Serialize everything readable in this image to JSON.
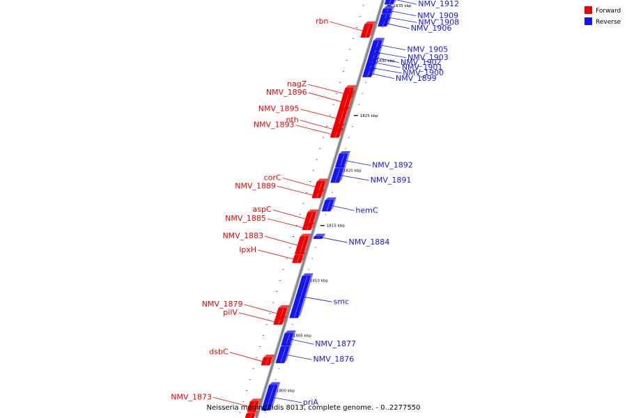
{
  "caption": "Neisseria meningitidis 8013, complete genome. - 0..2277550",
  "legend": [
    {
      "label": "Forward",
      "color": "#ee0000"
    },
    {
      "label": "Reverse",
      "color": "#1515ee"
    }
  ],
  "colors": {
    "forward": "#ee0000",
    "reverse": "#1515ee",
    "backbone": "#888888",
    "leader": "#000000"
  },
  "chart_data": {
    "type": "diagram",
    "view_kbp": [
      1797.5,
      1835.5
    ],
    "ticks": [
      "1800 kbp",
      "1805 kbp",
      "1810 kbp",
      "1815 kbp",
      "1820 kbp",
      "1825 kbp",
      "1830 kbp",
      "1835 kbp"
    ],
    "tick_values": [
      1800,
      1805,
      1810,
      1815,
      1820,
      1825,
      1830,
      1835
    ],
    "forward_genes": [
      {
        "name": "rbn",
        "start": 1832.1,
        "end": 1833.3
      },
      {
        "name": "nagZ",
        "start": 1826.5,
        "end": 1827.5
      },
      {
        "name": "NMV_1896",
        "start": 1825.5,
        "end": 1827.0
      },
      {
        "name": "NMV_1895",
        "start": 1824.0,
        "end": 1825.5
      },
      {
        "name": "nth",
        "start": 1823.5,
        "end": 1824.0
      },
      {
        "name": "NMV_1893",
        "start": 1823.0,
        "end": 1823.6
      },
      {
        "name": "corC",
        "start": 1818.0,
        "end": 1819.0
      },
      {
        "name": "NMV_1889",
        "start": 1817.5,
        "end": 1818.0
      },
      {
        "name": "aspC",
        "start": 1815.0,
        "end": 1816.2
      },
      {
        "name": "NMV_1885",
        "start": 1814.6,
        "end": 1815.0
      },
      {
        "name": "NMV_1883",
        "start": 1812.4,
        "end": 1814.0
      },
      {
        "name": "lpxH",
        "start": 1811.6,
        "end": 1812.3
      },
      {
        "name": "NMV_1879",
        "start": 1806.5,
        "end": 1807.5
      },
      {
        "name": "pilV",
        "start": 1806.0,
        "end": 1806.5
      },
      {
        "name": "dsbC",
        "start": 1802.3,
        "end": 1803.0
      },
      {
        "name": "NMV_1873",
        "start": 1798.1,
        "end": 1799.0
      },
      {
        "name": "",
        "start": 1797.5,
        "end": 1797.9
      }
    ],
    "reverse_genes": [
      {
        "name": "NMV_1912",
        "start": 1835.1,
        "end": 1836.0
      },
      {
        "name": "NMV_1909",
        "start": 1834.3,
        "end": 1834.7
      },
      {
        "name": "NMV_1908",
        "start": 1833.6,
        "end": 1834.2
      },
      {
        "name": "NMV_1906",
        "start": 1833.1,
        "end": 1833.6
      },
      {
        "name": "NMV_1905",
        "start": 1831.0,
        "end": 1831.8
      },
      {
        "name": "NMV_1903",
        "start": 1830.4,
        "end": 1831.0
      },
      {
        "name": "NMV_1902",
        "start": 1830.0,
        "end": 1830.5
      },
      {
        "name": "NMV_1901",
        "start": 1829.6,
        "end": 1830.0
      },
      {
        "name": "NMV_1900",
        "start": 1829.0,
        "end": 1829.6
      },
      {
        "name": "NMV_1899",
        "start": 1828.5,
        "end": 1829.1
      },
      {
        "name": "NMV_1892",
        "start": 1820.3,
        "end": 1821.5
      },
      {
        "name": "NMV_1891",
        "start": 1818.9,
        "end": 1820.2
      },
      {
        "name": "hemC",
        "start": 1816.3,
        "end": 1817.3
      },
      {
        "name": "NMV_1884",
        "start": 1813.8,
        "end": 1814.0
      },
      {
        "name": "smc",
        "start": 1806.6,
        "end": 1810.4
      },
      {
        "name": "NMV_1877",
        "start": 1804.1,
        "end": 1805.2
      },
      {
        "name": "NMV_1876",
        "start": 1802.5,
        "end": 1804.0
      },
      {
        "name": "priA",
        "start": 1798.2,
        "end": 1800.5
      }
    ]
  }
}
